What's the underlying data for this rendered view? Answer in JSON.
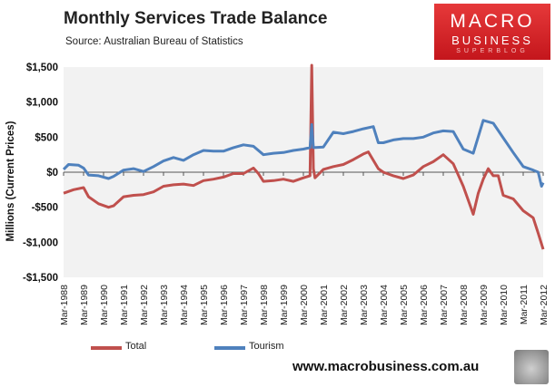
{
  "header": {
    "title": "Monthly Services Trade Balance",
    "source": "Source: Australian Bureau of Statistics"
  },
  "logo": {
    "line1": "MACRO",
    "line2": "BUSINESS",
    "line3": "SUPERBLOG"
  },
  "footer": {
    "website": "www.macrobusiness.com.au"
  },
  "colors": {
    "total": "#c0504d",
    "tourism": "#4f81bd",
    "logo_red": "#d42226"
  },
  "chart_data": {
    "type": "line",
    "title": "Monthly Services Trade Balance",
    "ylabel": "Millions (Current Prices)",
    "xlabel": "",
    "ylim": [
      -1500,
      1500
    ],
    "y_ticks": [
      "-$1,500",
      "-$1,000",
      "-$500",
      "$0",
      "$500",
      "$1,000",
      "$1,500"
    ],
    "y_tick_values": [
      -1500,
      -1000,
      -500,
      0,
      500,
      1000,
      1500
    ],
    "x_range": [
      "Mar-1988",
      "Mar-2012"
    ],
    "x_ticks": [
      "Mar-1988",
      "Mar-1989",
      "Mar-1990",
      "Mar-1991",
      "Mar-1992",
      "Mar-1993",
      "Mar-1994",
      "Mar-1995",
      "Mar-1996",
      "Mar-1997",
      "Mar-1998",
      "Mar-1999",
      "Mar-2000",
      "Mar-2001",
      "Mar-2002",
      "Mar-2003",
      "Mar-2004",
      "Mar-2005",
      "Mar-2006",
      "Mar-2007",
      "Mar-2008",
      "Mar-2009",
      "Mar-2010",
      "Mar-2011",
      "Mar-2012"
    ],
    "grid": false,
    "legend_position": "bottom",
    "series": [
      {
        "name": "Total",
        "color": "#c0504d",
        "points": [
          [
            "Mar-1988",
            -300
          ],
          [
            "Sep-1988",
            -250
          ],
          [
            "Mar-1989",
            -220
          ],
          [
            "Jun-1989",
            -350
          ],
          [
            "Dec-1989",
            -450
          ],
          [
            "Jun-1990",
            -500
          ],
          [
            "Sep-1990",
            -480
          ],
          [
            "Mar-1991",
            -350
          ],
          [
            "Sep-1991",
            -330
          ],
          [
            "Mar-1992",
            -320
          ],
          [
            "Sep-1992",
            -280
          ],
          [
            "Mar-1993",
            -200
          ],
          [
            "Sep-1993",
            -180
          ],
          [
            "Mar-1994",
            -170
          ],
          [
            "Sep-1994",
            -190
          ],
          [
            "Mar-1995",
            -120
          ],
          [
            "Sep-1995",
            -100
          ],
          [
            "Mar-1996",
            -70
          ],
          [
            "Sep-1996",
            -20
          ],
          [
            "Mar-1997",
            -20
          ],
          [
            "Sep-1997",
            60
          ],
          [
            "Dec-1997",
            -20
          ],
          [
            "Mar-1998",
            -130
          ],
          [
            "Sep-1998",
            -120
          ],
          [
            "Mar-1999",
            -100
          ],
          [
            "Sep-1999",
            -130
          ],
          [
            "Mar-2000",
            -80
          ],
          [
            "Jul-2000",
            -50
          ],
          [
            "Aug-2000",
            1550
          ],
          [
            "Sep-2000",
            50
          ],
          [
            "Oct-2000",
            -80
          ],
          [
            "Mar-2001",
            40
          ],
          [
            "Sep-2001",
            80
          ],
          [
            "Mar-2002",
            110
          ],
          [
            "Sep-2002",
            180
          ],
          [
            "Mar-2003",
            260
          ],
          [
            "Jun-2003",
            290
          ],
          [
            "Dec-2003",
            50
          ],
          [
            "Mar-2004",
            0
          ],
          [
            "Sep-2004",
            -50
          ],
          [
            "Mar-2005",
            -90
          ],
          [
            "Sep-2005",
            -40
          ],
          [
            "Mar-2006",
            80
          ],
          [
            "Sep-2006",
            150
          ],
          [
            "Mar-2007",
            250
          ],
          [
            "Sep-2007",
            120
          ],
          [
            "Mar-2008",
            -200
          ],
          [
            "Jun-2008",
            -400
          ],
          [
            "Sep-2008",
            -600
          ],
          [
            "Dec-2008",
            -300
          ],
          [
            "Mar-2009",
            -100
          ],
          [
            "Jun-2009",
            50
          ],
          [
            "Sep-2009",
            -50
          ],
          [
            "Dec-2009",
            -50
          ],
          [
            "Mar-2010",
            -330
          ],
          [
            "Sep-2010",
            -380
          ],
          [
            "Mar-2011",
            -550
          ],
          [
            "Sep-2011",
            -650
          ],
          [
            "Dec-2011",
            -870
          ],
          [
            "Mar-2012",
            -1100
          ]
        ]
      },
      {
        "name": "Tourism",
        "color": "#4f81bd",
        "points": [
          [
            "Mar-1988",
            40
          ],
          [
            "Jun-1988",
            110
          ],
          [
            "Dec-1988",
            100
          ],
          [
            "Mar-1989",
            60
          ],
          [
            "Jun-1989",
            -40
          ],
          [
            "Dec-1989",
            -50
          ],
          [
            "Jun-1990",
            -90
          ],
          [
            "Sep-1990",
            -60
          ],
          [
            "Mar-1991",
            30
          ],
          [
            "Sep-1991",
            50
          ],
          [
            "Mar-1992",
            10
          ],
          [
            "Sep-1992",
            80
          ],
          [
            "Mar-1993",
            160
          ],
          [
            "Sep-1993",
            210
          ],
          [
            "Mar-1994",
            170
          ],
          [
            "Sep-1994",
            250
          ],
          [
            "Mar-1995",
            310
          ],
          [
            "Sep-1995",
            300
          ],
          [
            "Mar-1996",
            300
          ],
          [
            "Sep-1996",
            350
          ],
          [
            "Mar-1997",
            390
          ],
          [
            "Sep-1997",
            370
          ],
          [
            "Mar-1998",
            250
          ],
          [
            "Sep-1998",
            270
          ],
          [
            "Mar-1999",
            280
          ],
          [
            "Sep-1999",
            310
          ],
          [
            "Mar-2000",
            330
          ],
          [
            "Jul-2000",
            350
          ],
          [
            "Aug-2000",
            680
          ],
          [
            "Sep-2000",
            350
          ],
          [
            "Mar-2001",
            360
          ],
          [
            "Sep-2001",
            570
          ],
          [
            "Mar-2002",
            550
          ],
          [
            "Sep-2002",
            580
          ],
          [
            "Mar-2003",
            620
          ],
          [
            "Sep-2003",
            650
          ],
          [
            "Dec-2003",
            420
          ],
          [
            "Mar-2004",
            420
          ],
          [
            "Sep-2004",
            460
          ],
          [
            "Mar-2005",
            480
          ],
          [
            "Sep-2005",
            480
          ],
          [
            "Mar-2006",
            500
          ],
          [
            "Sep-2006",
            560
          ],
          [
            "Mar-2007",
            590
          ],
          [
            "Sep-2007",
            580
          ],
          [
            "Mar-2008",
            330
          ],
          [
            "Sep-2008",
            270
          ],
          [
            "Mar-2009",
            740
          ],
          [
            "Sep-2009",
            700
          ],
          [
            "Mar-2010",
            490
          ],
          [
            "Sep-2010",
            280
          ],
          [
            "Mar-2011",
            80
          ],
          [
            "Sep-2011",
            30
          ],
          [
            "Dec-2011",
            0
          ],
          [
            "Feb-2012",
            -200
          ],
          [
            "Mar-2012",
            -150
          ]
        ]
      }
    ]
  }
}
